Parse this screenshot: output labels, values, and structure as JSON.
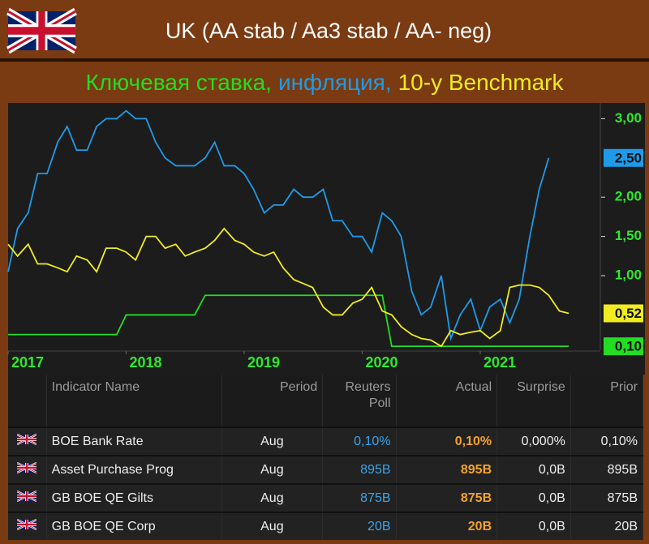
{
  "header": {
    "title": "UK (AA stab / Aa3 stab / AA- neg)"
  },
  "chart_data": {
    "type": "line",
    "x": [
      2017,
      2017.08,
      2017.17,
      2017.25,
      2017.33,
      2017.42,
      2017.5,
      2017.58,
      2017.67,
      2017.75,
      2017.83,
      2017.92,
      2018,
      2018.08,
      2018.17,
      2018.25,
      2018.33,
      2018.42,
      2018.5,
      2018.58,
      2018.67,
      2018.75,
      2018.83,
      2018.92,
      2019,
      2019.08,
      2019.17,
      2019.25,
      2019.33,
      2019.42,
      2019.5,
      2019.58,
      2019.67,
      2019.75,
      2019.83,
      2019.92,
      2020,
      2020.08,
      2020.17,
      2020.25,
      2020.33,
      2020.42,
      2020.5,
      2020.58,
      2020.67,
      2020.75,
      2020.83,
      2020.92,
      2021,
      2021.08,
      2021.17,
      2021.25,
      2021.33,
      2021.42,
      2021.5,
      2021.58,
      2021.67,
      2021.75
    ],
    "series": [
      {
        "name": "Ключевая ставка,",
        "color": "#22dd22",
        "last_label": "0,10",
        "values": [
          0.25,
          0.25,
          0.25,
          0.25,
          0.25,
          0.25,
          0.25,
          0.25,
          0.25,
          0.25,
          0.25,
          0.25,
          0.5,
          0.5,
          0.5,
          0.5,
          0.5,
          0.5,
          0.5,
          0.5,
          0.75,
          0.75,
          0.75,
          0.75,
          0.75,
          0.75,
          0.75,
          0.75,
          0.75,
          0.75,
          0.75,
          0.75,
          0.75,
          0.75,
          0.75,
          0.75,
          0.75,
          0.75,
          0.75,
          0.1,
          0.1,
          0.1,
          0.1,
          0.1,
          0.1,
          0.1,
          0.1,
          0.1,
          0.1,
          0.1,
          0.1,
          0.1,
          0.1,
          0.1,
          0.1,
          0.1,
          0.1,
          0.1
        ]
      },
      {
        "name": "инфляция,",
        "color": "#1e9be8",
        "last_label": "2,50",
        "values": [
          1.05,
          1.6,
          1.8,
          2.3,
          2.3,
          2.7,
          2.9,
          2.6,
          2.6,
          2.9,
          3.0,
          3.0,
          3.1,
          3.0,
          3.0,
          2.7,
          2.5,
          2.4,
          2.4,
          2.4,
          2.5,
          2.7,
          2.4,
          2.4,
          2.3,
          2.1,
          1.8,
          1.9,
          1.9,
          2.1,
          2.0,
          2.0,
          2.1,
          1.7,
          1.7,
          1.5,
          1.5,
          1.3,
          1.8,
          1.7,
          1.5,
          0.8,
          0.5,
          0.6,
          1.0,
          0.2,
          0.5,
          0.7,
          0.3,
          0.6,
          0.7,
          0.4,
          0.7,
          1.5,
          2.1,
          2.5,
          null,
          null
        ]
      },
      {
        "name": "10-y Benchmark",
        "color": "#f0ec20",
        "last_label": "0,52",
        "values": [
          1.4,
          1.25,
          1.4,
          1.15,
          1.15,
          1.1,
          1.05,
          1.25,
          1.2,
          1.05,
          1.35,
          1.35,
          1.3,
          1.2,
          1.5,
          1.5,
          1.35,
          1.4,
          1.25,
          1.3,
          1.35,
          1.45,
          1.6,
          1.45,
          1.4,
          1.3,
          1.25,
          1.3,
          1.1,
          0.95,
          0.9,
          0.85,
          0.6,
          0.5,
          0.5,
          0.65,
          0.7,
          0.85,
          0.55,
          0.5,
          0.35,
          0.25,
          0.2,
          0.18,
          0.1,
          0.3,
          0.25,
          0.28,
          0.3,
          0.2,
          0.3,
          0.85,
          0.88,
          0.88,
          0.85,
          0.75,
          0.55,
          0.52
        ]
      }
    ],
    "xlim": [
      2017,
      2022
    ],
    "xticks": [
      2017,
      2018,
      2019,
      2020,
      2021
    ],
    "ylim": [
      0.05,
      3.2
    ],
    "yticks": [
      {
        "value": 1,
        "label": "1,00"
      },
      {
        "value": 1.5,
        "label": "1,50"
      },
      {
        "value": 2,
        "label": "2,00"
      },
      {
        "value": 3,
        "label": "3,00"
      }
    ],
    "y_axis_side": "right",
    "grid": false
  },
  "table": {
    "headers": [
      "Indicator Name",
      "Period",
      "Reuters Poll",
      "Actual",
      "Surprise",
      "Prior"
    ],
    "rows": [
      [
        "BOE Bank Rate",
        "Aug",
        "0,10%",
        "0,10%",
        "0,000%",
        "0,10%"
      ],
      [
        "Asset Purchase Prog",
        "Aug",
        "895B",
        "895B",
        "0,0B",
        "895B"
      ],
      [
        "GB BOE QE Gilts",
        "Aug",
        "875B",
        "875B",
        "0,0B",
        "875B"
      ],
      [
        "GB BOE QE Corp",
        "Aug",
        "20B",
        "20B",
        "0,0B",
        "20B"
      ]
    ]
  }
}
